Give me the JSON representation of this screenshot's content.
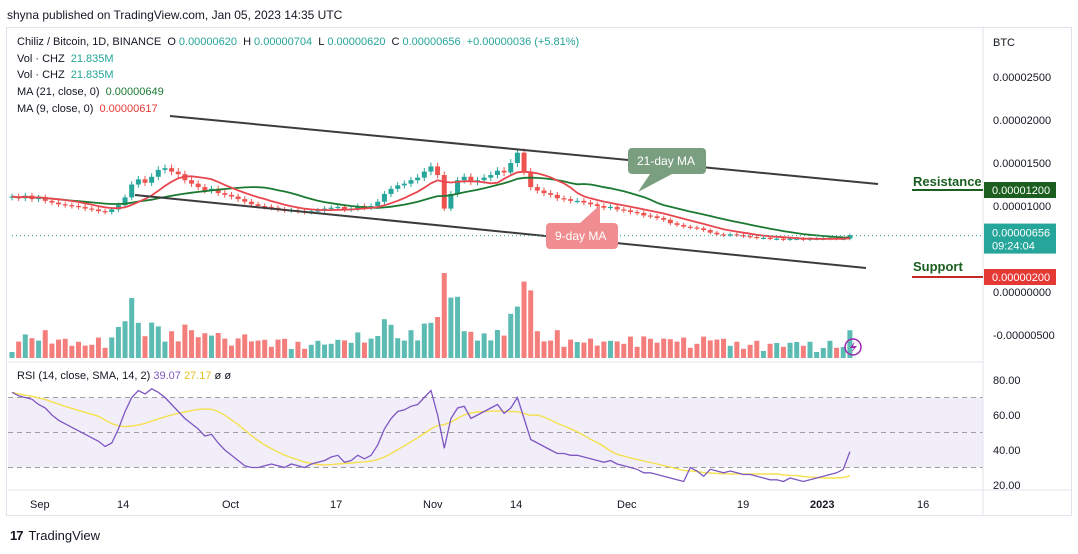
{
  "header": {
    "publish_line": "shyna published on TradingView.com, Jan 05, 2023 14:35 UTC"
  },
  "legend": {
    "symbol": "Chiliz / Bitcoin, 1D, BINANCE",
    "o_label": "O",
    "o_value": "0.00000620",
    "h_label": "H",
    "h_value": "0.00000704",
    "l_label": "L",
    "l_value": "0.00000620",
    "c_label": "C",
    "c_value": "0.00000656",
    "change": "+0.00000036 (+5.81%)",
    "vol1_label": "Vol · CHZ",
    "vol1_value": "21.835M",
    "vol2_label": "Vol · CHZ",
    "vol2_value": "21.835M",
    "ma21_label": "MA (21, close, 0)",
    "ma21_value": "0.00000649",
    "ma9_label": "MA (9, close, 0)",
    "ma9_value": "0.00000617",
    "rsi_label": "RSI (14, close, SMA, 14, 2)",
    "rsi_value": "39.07",
    "rsi_ma_value": "27.17",
    "rsi_extra1": "ø",
    "rsi_extra2": "ø"
  },
  "footer": {
    "brand": "TradingView",
    "logo": "17"
  },
  "colors": {
    "up": "#26a69a",
    "down": "#ef5350",
    "ma21": "#1b7a32",
    "ma9": "#e8474f",
    "rsi": "#7e57c2",
    "rsi_ma": "#f5e04d",
    "channel": "#3c3c3c",
    "resistance_label": "#1b5e20",
    "support_label": "#c62828",
    "price_badge": "#26a69a",
    "support_badge": "#e53935",
    "resistance_badge": "#1b5e20"
  },
  "chart_data": {
    "type": "candlestick",
    "price_axis_title": "BTC",
    "price_ticks": [
      "0.00002500",
      "0.00002000",
      "0.00001500",
      "0.00001000",
      "0.00000000",
      "-0.00000500"
    ],
    "price_tick_values": [
      2.5e-05,
      2e-05,
      1.5e-05,
      1e-05,
      0,
      -5e-06
    ],
    "x_ticks": [
      "Sep",
      "14",
      "Oct",
      "17",
      "Nov",
      "14",
      "Dec",
      "19",
      "2023",
      "16"
    ],
    "current_price": "0.00000656",
    "countdown": "09:24:04",
    "resistance": {
      "label": "Resistance",
      "value": "0.00001200"
    },
    "support": {
      "label": "Support",
      "value": "0.00000200"
    },
    "annotations": {
      "ma21": "21-day MA",
      "ma9": "9-day MA"
    },
    "rsi_ticks": [
      "80.00",
      "60.00",
      "40.00",
      "20.00"
    ],
    "rsi_tick_values": [
      80,
      60,
      40,
      20
    ],
    "rsi_band": [
      30,
      70
    ],
    "close": [
      1.11e-05,
      1.09e-05,
      1.12e-05,
      1.08e-05,
      1.1e-05,
      1.06e-05,
      1.04e-05,
      1.02e-05,
      1.01e-05,
      1e-05,
      9.9e-06,
      9.7e-06,
      9.6e-06,
      9.4e-06,
      9.3e-06,
      9.6e-06,
      1.01e-05,
      1.1e-05,
      1.25e-05,
      1.31e-05,
      1.27e-05,
      1.34e-05,
      1.42e-05,
      1.44e-05,
      1.4e-05,
      1.37e-05,
      1.3e-05,
      1.26e-05,
      1.22e-05,
      1.18e-05,
      1.2e-05,
      1.15e-05,
      1.13e-05,
      1.11e-05,
      1.08e-05,
      1.05e-05,
      1.02e-05,
      1e-05,
      9.9e-06,
      9.8e-06,
      9.6e-06,
      9.5e-06,
      9.5e-06,
      9.4e-06,
      9.3e-06,
      9.4e-06,
      9.5e-06,
      9.7e-06,
      9.8e-06,
      9.9e-06,
      9.6e-06,
      9.7e-06,
      1e-05,
      9.8e-06,
      1e-05,
      1.05e-05,
      1.14e-05,
      1.2e-05,
      1.24e-05,
      1.26e-05,
      1.3e-05,
      1.33e-05,
      1.4e-05,
      1.46e-05,
      1.36e-05,
      9.7e-06,
      1.14e-05,
      1.3e-05,
      1.34e-05,
      1.28e-05,
      1.3e-05,
      1.33e-05,
      1.36e-05,
      1.41e-05,
      1.39e-05,
      1.5e-05,
      1.62e-05,
      1.4e-05,
      1.22e-05,
      1.18e-05,
      1.15e-05,
      1.13e-05,
      1.09e-05,
      1.08e-05,
      1.06e-05,
      1.06e-05,
      1.04e-05,
      1.02e-05,
      1e-05,
      9.8e-06,
      9.9e-06,
      9.6e-06,
      9.5e-06,
      9.3e-06,
      9.2e-06,
      8.9e-06,
      8.8e-06,
      8.6e-06,
      8.4e-06,
      8e-06,
      7.8e-06,
      7.6e-06,
      7.5e-06,
      7.4e-06,
      7.2e-06,
      6.9e-06,
      6.7e-06,
      6.6e-06,
      6.7e-06,
      6.6e-06,
      6.5e-06,
      6.4e-06,
      6.3e-06,
      6.3e-06,
      6.2e-06,
      6.2e-06,
      6.1e-06,
      6.2e-06,
      6.2e-06,
      6.1e-06,
      6.2e-06,
      6.2e-06,
      6.2e-06,
      6.3e-06,
      6.2e-06,
      6.2e-06,
      6.6e-06
    ],
    "rsi": [
      73,
      71,
      70,
      69,
      66,
      64,
      60,
      57,
      55,
      53,
      51,
      49,
      47,
      45,
      42,
      44,
      52,
      62,
      70,
      74,
      72,
      75,
      73,
      70,
      66,
      62,
      58,
      55,
      52,
      48,
      49,
      44,
      40,
      37,
      34,
      31,
      30,
      30,
      31,
      32,
      31,
      30,
      32,
      31,
      30,
      32,
      33,
      34,
      36,
      37,
      33,
      34,
      37,
      35,
      37,
      43,
      52,
      58,
      62,
      63,
      65,
      66,
      70,
      74,
      60,
      41,
      58,
      64,
      65,
      58,
      60,
      62,
      64,
      66,
      61,
      64,
      70,
      58,
      46,
      44,
      42,
      40,
      38,
      38,
      37,
      37,
      36,
      35,
      34,
      33,
      34,
      32,
      31,
      30,
      29,
      27,
      27,
      26,
      25,
      24,
      23,
      22,
      30,
      28,
      25,
      29,
      28,
      27,
      28,
      27,
      26,
      26,
      25,
      24,
      23,
      23,
      22,
      24,
      23,
      22,
      23,
      24,
      25,
      26,
      27,
      29,
      39.07
    ]
  }
}
